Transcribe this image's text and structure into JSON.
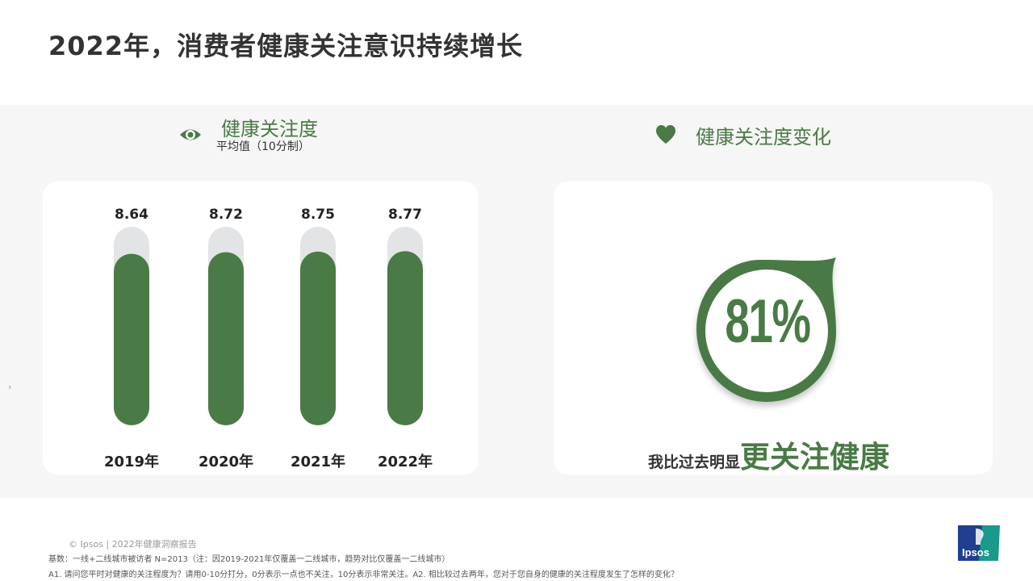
{
  "title": "2022年，消费者健康关注意识持续增长",
  "left_section": {
    "heading": "健康关注度",
    "subheading": "平均值（10分制）",
    "icon": "eye-icon"
  },
  "right_section": {
    "heading": "健康关注度变化",
    "icon": "heart-icon",
    "percent_text": "81%",
    "percent_value": 81,
    "claim_small": "我比过去明显",
    "claim_big": "更关注健康"
  },
  "chart_data": {
    "type": "bar",
    "categories": [
      "2019年",
      "2020年",
      "2021年",
      "2022年"
    ],
    "values": [
      8.64,
      8.72,
      8.75,
      8.77
    ],
    "value_labels": [
      "8.64",
      "8.72",
      "8.75",
      "8.77"
    ],
    "ylim": [
      0,
      10
    ],
    "colors": {
      "bar": "#4a7a45",
      "track": "#e3e4e6"
    }
  },
  "side_mark": "›",
  "footer": {
    "copyright": "© Ipsos | 2022年健康洞察报告",
    "base": "基数：一线+二线城市被访者  N=2013（注：因2019-2021年仅覆盖一二线城市，趋势对比仅覆盖一二线城市）",
    "note": "A1. 请问您平时对健康的关注程度为？请用0-10分打分，0分表示一点也不关注，10分表示非常关注。A2. 相比较过去两年，您对于您自身的健康的关注程度发生了怎样的变化？"
  },
  "logo": {
    "text": "Ipsos",
    "colors": [
      "#1f3f8f",
      "#1a9a8a"
    ]
  },
  "colors": {
    "accent": "#4a7a45",
    "band": "#f6f6f6",
    "title": "#333333"
  }
}
